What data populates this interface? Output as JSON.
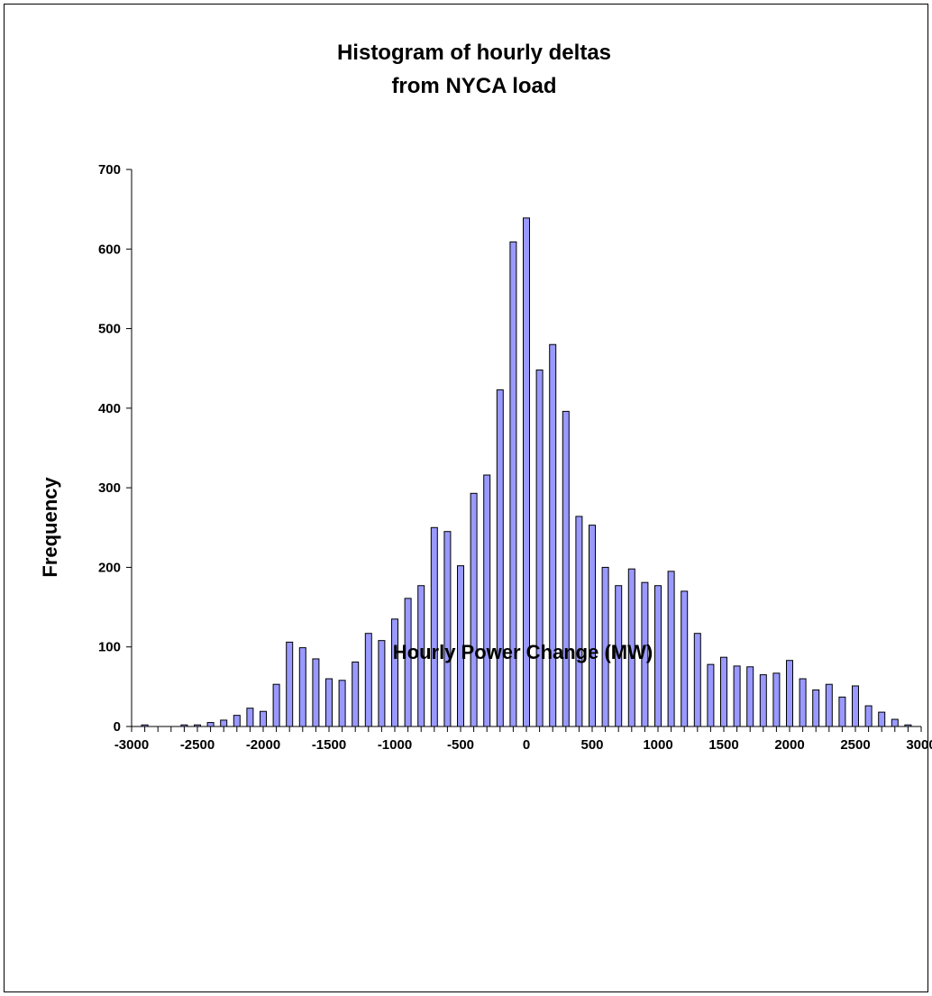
{
  "chart_data": {
    "type": "bar",
    "title": [
      "Histogram of hourly deltas",
      "from NYCA load"
    ],
    "xlabel": "Hourly Power Change (MW)",
    "ylabel": "Frequency",
    "xlim": [
      -3000,
      3000
    ],
    "ylim": [
      0,
      700
    ],
    "x_ticks": [
      -3000,
      -2500,
      -2000,
      -1500,
      -1000,
      -500,
      0,
      500,
      1000,
      1500,
      2000,
      2500,
      3000
    ],
    "y_ticks": [
      0,
      100,
      200,
      300,
      400,
      500,
      600,
      700
    ],
    "grid": false,
    "bar_color": "#9999ff",
    "x": [
      -2900,
      -2800,
      -2700,
      -2600,
      -2500,
      -2400,
      -2300,
      -2200,
      -2100,
      -2000,
      -1900,
      -1800,
      -1700,
      -1600,
      -1500,
      -1400,
      -1300,
      -1200,
      -1100,
      -1000,
      -900,
      -800,
      -700,
      -600,
      -500,
      -400,
      -300,
      -200,
      -100,
      0,
      100,
      200,
      300,
      400,
      500,
      600,
      700,
      800,
      900,
      1000,
      1100,
      1200,
      1300,
      1400,
      1500,
      1600,
      1700,
      1800,
      1900,
      2000,
      2100,
      2200,
      2300,
      2400,
      2500,
      2600,
      2700,
      2800,
      2900
    ],
    "values": [
      2,
      0,
      0,
      2,
      2,
      5,
      8,
      14,
      23,
      19,
      53,
      106,
      99,
      85,
      60,
      58,
      81,
      117,
      108,
      135,
      161,
      177,
      250,
      245,
      202,
      293,
      316,
      423,
      609,
      639,
      448,
      480,
      396,
      264,
      253,
      200,
      177,
      198,
      181,
      177,
      195,
      170,
      117,
      78,
      87,
      76,
      75,
      65,
      67,
      83,
      60,
      46,
      53,
      37,
      51,
      26,
      18,
      9,
      2
    ]
  }
}
